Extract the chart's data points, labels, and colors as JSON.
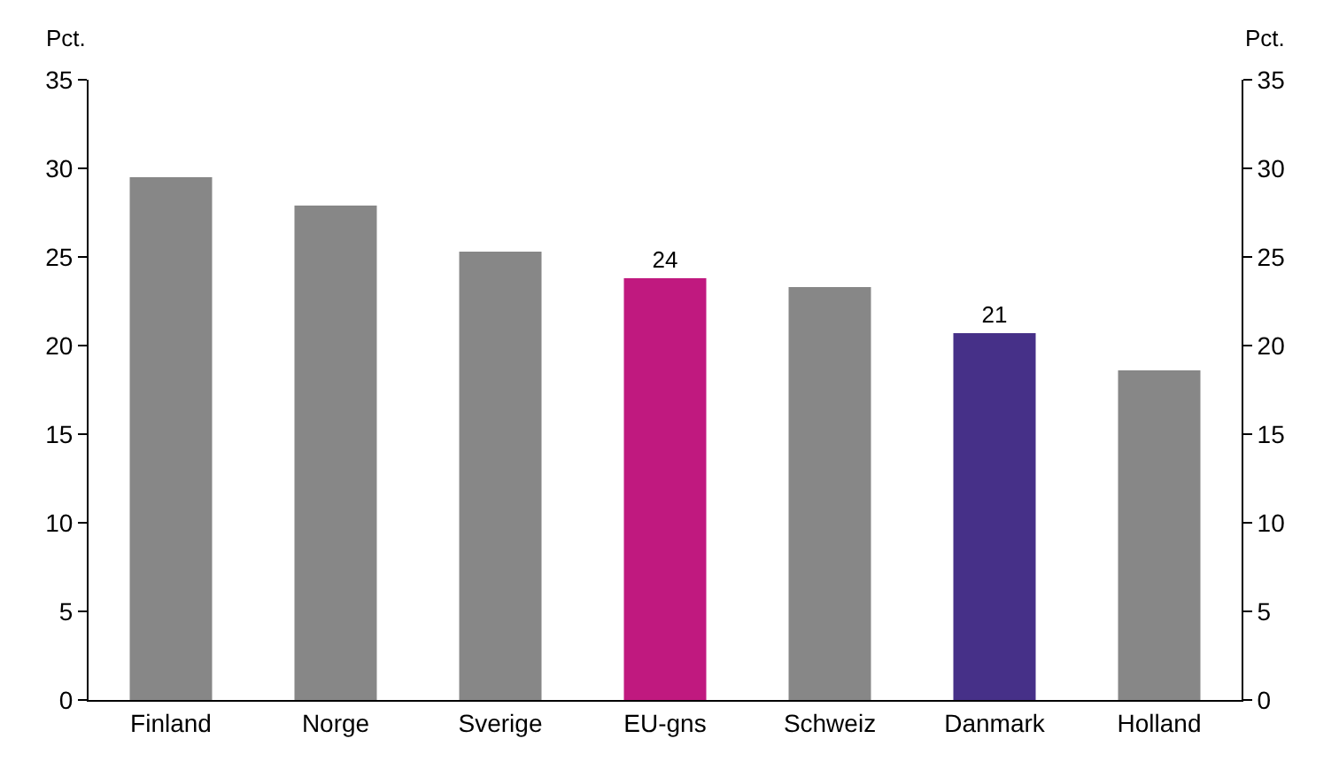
{
  "chart_data": {
    "type": "bar",
    "categories": [
      "Finland",
      "Norge",
      "Sverige",
      "EU-gns",
      "Schweiz",
      "Danmark",
      "Holland"
    ],
    "values": [
      29.5,
      27.9,
      25.3,
      23.8,
      23.3,
      20.7,
      18.6
    ],
    "colors": [
      "#878787",
      "#878787",
      "#878787",
      "#c0197f",
      "#878787",
      "#463088",
      "#878787"
    ],
    "value_labels": [
      null,
      null,
      null,
      "24",
      null,
      "21",
      null
    ],
    "ylabel": "Pct.",
    "y2label": "Pct.",
    "ylim": [
      0,
      35
    ],
    "yticks": [
      0,
      5,
      10,
      15,
      20,
      25,
      30,
      35
    ],
    "y2lim": [
      0,
      35
    ],
    "y2ticks": [
      0,
      5,
      10,
      15,
      20,
      25,
      30,
      35
    ],
    "grid": false
  }
}
